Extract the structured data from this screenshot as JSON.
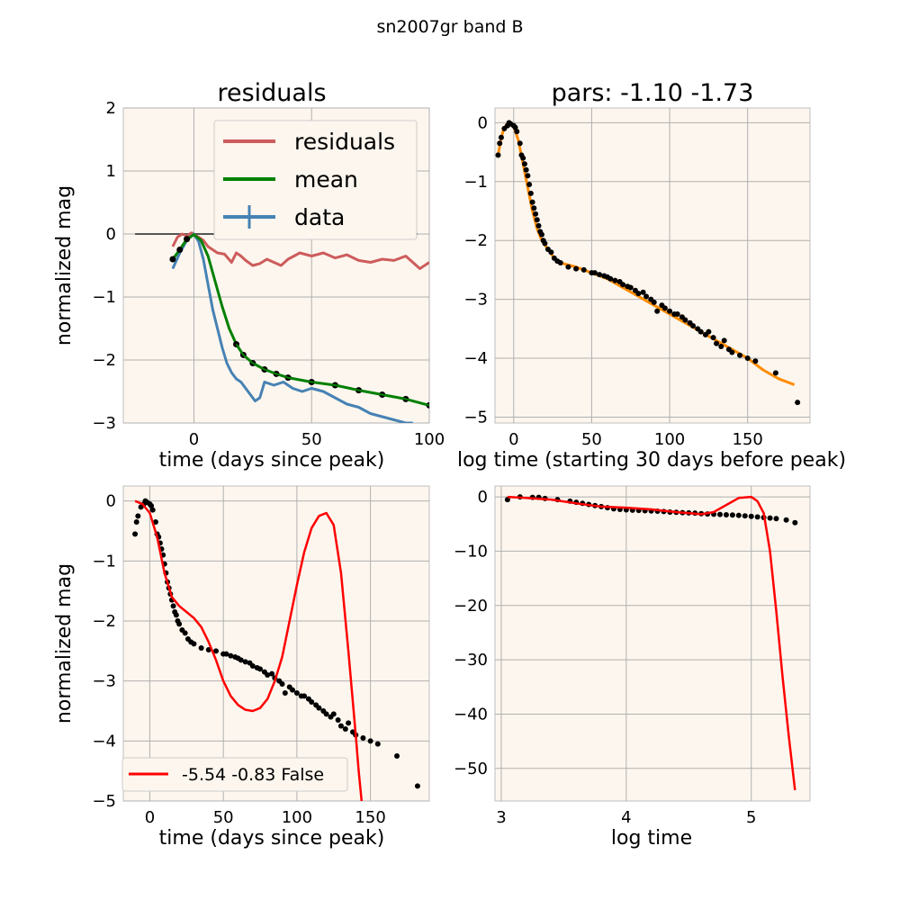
{
  "suptitle": "sn2007gr band B",
  "chart_data": [
    {
      "type": "line",
      "title": "residuals",
      "xlabel": "time (days since peak)",
      "ylabel": "normalized mag",
      "xlim": [
        -30,
        100
      ],
      "ylim": [
        -3,
        2
      ],
      "xticks": [
        0,
        50,
        100
      ],
      "yticks": [
        2,
        1,
        0,
        -1,
        -2,
        -3
      ],
      "grid": true,
      "legend_position": "top-right",
      "series": [
        {
          "name": "residuals",
          "color": "#cd5c5c",
          "x": [
            -9,
            -7,
            -5,
            -3,
            -1,
            0,
            2,
            4,
            6,
            8,
            10,
            13,
            16,
            18,
            20,
            22,
            25,
            28,
            31,
            34,
            37,
            40,
            45,
            50,
            55,
            60,
            65,
            70,
            75,
            80,
            85,
            90,
            93,
            96,
            100
          ],
          "y": [
            -0.2,
            -0.05,
            0,
            -0.03,
            0.02,
            -0.01,
            -0.05,
            -0.1,
            -0.2,
            -0.25,
            -0.3,
            -0.32,
            -0.45,
            -0.3,
            -0.35,
            -0.42,
            -0.5,
            -0.47,
            -0.4,
            -0.45,
            -0.5,
            -0.4,
            -0.3,
            -0.35,
            -0.3,
            -0.38,
            -0.33,
            -0.42,
            -0.45,
            -0.4,
            -0.42,
            -0.35,
            -0.45,
            -0.55,
            -0.45
          ]
        },
        {
          "name": "mean",
          "color": "#008000",
          "x": [
            -9,
            -6,
            -3,
            0,
            3,
            6,
            9,
            12,
            15,
            18,
            21,
            25,
            30,
            35,
            40,
            50,
            60,
            70,
            80,
            90,
            100
          ],
          "y": [
            -0.4,
            -0.25,
            -0.08,
            -0.01,
            -0.1,
            -0.35,
            -0.75,
            -1.15,
            -1.5,
            -1.75,
            -1.92,
            -2.05,
            -2.15,
            -2.22,
            -2.28,
            -2.35,
            -2.4,
            -2.48,
            -2.55,
            -2.62,
            -2.72
          ]
        },
        {
          "name": "data",
          "color": "#4682b4",
          "x": [
            -9,
            -6,
            -3,
            0,
            2,
            4,
            6,
            8,
            10,
            12,
            14,
            16,
            18,
            20,
            22,
            24,
            26,
            28,
            30,
            34,
            38,
            42,
            46,
            50,
            55,
            60,
            65,
            70,
            75,
            80,
            85,
            90,
            93
          ],
          "y": [
            -0.55,
            -0.3,
            -0.1,
            0,
            -0.12,
            -0.4,
            -0.8,
            -1.2,
            -1.5,
            -1.8,
            -2.05,
            -2.2,
            -2.3,
            -2.35,
            -2.45,
            -2.55,
            -2.65,
            -2.6,
            -2.35,
            -2.4,
            -2.35,
            -2.45,
            -2.5,
            -2.45,
            -2.5,
            -2.6,
            -2.7,
            -2.75,
            -2.85,
            -2.9,
            -2.95,
            -3.0,
            -3.0
          ]
        }
      ],
      "baseline": {
        "x": [
          -25,
          95
        ],
        "y": 0,
        "color": "#555555"
      }
    },
    {
      "type": "scatter",
      "title": "pars: -1.10 -1.73",
      "xlabel": "log time (starting 30 days before peak)",
      "ylabel": "",
      "xlim": [
        -12,
        190
      ],
      "ylim": [
        -5.1,
        0.25
      ],
      "xticks": [
        0,
        50,
        100,
        150
      ],
      "yticks": [
        0,
        -1,
        -2,
        -3,
        -4,
        -5
      ],
      "grid": true,
      "fit": {
        "color": "#ff8c00",
        "x": [
          -10,
          -8,
          -6,
          -4,
          -2,
          0,
          3,
          6,
          9,
          12,
          15,
          18,
          22,
          26,
          30,
          40,
          50,
          60,
          70,
          80,
          90,
          100,
          110,
          120,
          130,
          140,
          150,
          160,
          170,
          180
        ],
        "y": [
          -0.55,
          -0.25,
          -0.08,
          -0.02,
          -0.02,
          -0.06,
          -0.3,
          -0.7,
          -1.1,
          -1.5,
          -1.8,
          -2.0,
          -2.15,
          -2.3,
          -2.38,
          -2.45,
          -2.55,
          -2.65,
          -2.8,
          -2.95,
          -3.1,
          -3.25,
          -3.4,
          -3.55,
          -3.7,
          -3.85,
          -4.0,
          -4.2,
          -4.35,
          -4.45
        ]
      },
      "points": {
        "color": "#000000",
        "x": [
          -10,
          -9,
          -8,
          -6,
          -4,
          -3,
          -2,
          0,
          1,
          2,
          4,
          5,
          6,
          7,
          8,
          9,
          10,
          11,
          12,
          13,
          14,
          15,
          16,
          17,
          18,
          19,
          20,
          22,
          24,
          26,
          28,
          30,
          35,
          40,
          45,
          50,
          52,
          55,
          58,
          60,
          62,
          65,
          68,
          70,
          73,
          75,
          78,
          80,
          83,
          85,
          88,
          90,
          92,
          95,
          97,
          100,
          103,
          105,
          108,
          110,
          113,
          115,
          118,
          120,
          123,
          125,
          128,
          130,
          133,
          135,
          138,
          140,
          145,
          150,
          155,
          168,
          182
        ],
        "y": [
          -0.55,
          -0.35,
          -0.25,
          -0.1,
          -0.05,
          0,
          -0.02,
          -0.05,
          -0.08,
          -0.15,
          -0.35,
          -0.55,
          -0.6,
          -0.7,
          -0.8,
          -0.9,
          -1.05,
          -1.2,
          -1.35,
          -1.45,
          -1.55,
          -1.65,
          -1.75,
          -1.85,
          -1.9,
          -2.0,
          -2.05,
          -2.15,
          -2.2,
          -2.3,
          -2.35,
          -2.38,
          -2.45,
          -2.48,
          -2.5,
          -2.55,
          -2.55,
          -2.58,
          -2.6,
          -2.62,
          -2.65,
          -2.68,
          -2.7,
          -2.75,
          -2.78,
          -2.8,
          -2.85,
          -2.9,
          -2.88,
          -2.95,
          -3.0,
          -3.05,
          -3.2,
          -3.1,
          -3.15,
          -3.2,
          -3.25,
          -3.25,
          -3.3,
          -3.35,
          -3.4,
          -3.45,
          -3.5,
          -3.55,
          -3.6,
          -3.55,
          -3.65,
          -3.75,
          -3.8,
          -3.7,
          -3.85,
          -3.9,
          -3.95,
          -4.0,
          -4.05,
          -4.25,
          -4.75
        ]
      }
    },
    {
      "type": "line",
      "title": "",
      "xlabel": "time (days since peak)",
      "ylabel": "normalized mag",
      "xlim": [
        -18,
        190
      ],
      "ylim": [
        -5.0,
        0.25
      ],
      "xticks": [
        0,
        50,
        100,
        150
      ],
      "yticks": [
        0,
        -1,
        -2,
        -3,
        -4,
        -5
      ],
      "grid": true,
      "legend_position": "lower-left",
      "fit": {
        "name": "-5.54 -0.83 False",
        "color": "#ff0000",
        "x": [
          -10,
          -5,
          0,
          5,
          10,
          15,
          20,
          25,
          30,
          35,
          40,
          45,
          50,
          55,
          60,
          65,
          70,
          75,
          80,
          85,
          90,
          95,
          100,
          105,
          110,
          115,
          120,
          125,
          130,
          135,
          140,
          142,
          144
        ],
        "y": [
          0,
          -0.05,
          -0.2,
          -0.6,
          -1.2,
          -1.6,
          -1.75,
          -1.85,
          -1.95,
          -2.1,
          -2.35,
          -2.65,
          -3.0,
          -3.25,
          -3.4,
          -3.48,
          -3.5,
          -3.45,
          -3.3,
          -3.0,
          -2.6,
          -2.0,
          -1.4,
          -0.85,
          -0.45,
          -0.25,
          -0.2,
          -0.4,
          -1.2,
          -2.5,
          -3.9,
          -4.5,
          -5.0
        ]
      },
      "points_ref": 1
    },
    {
      "type": "line",
      "title": "",
      "xlabel": "log time",
      "ylabel": "",
      "xlim": [
        2.95,
        5.47
      ],
      "ylim": [
        -56,
        2
      ],
      "xticks": [
        3,
        4,
        5
      ],
      "yticks": [
        0,
        -10,
        -20,
        -30,
        -40,
        -50
      ],
      "grid": true,
      "fit": {
        "color": "#ff0000",
        "x": [
          3.05,
          3.2,
          3.4,
          3.6,
          3.8,
          4.0,
          4.2,
          4.4,
          4.6,
          4.7,
          4.8,
          4.9,
          5.0,
          5.05,
          5.1,
          5.15,
          5.2,
          5.25,
          5.3,
          5.35
        ],
        "y": [
          0,
          -0.2,
          -0.5,
          -1.2,
          -1.8,
          -2.0,
          -2.3,
          -2.8,
          -3.2,
          -2.8,
          -1.5,
          -0.2,
          0,
          -0.8,
          -3,
          -10,
          -21,
          -33,
          -44,
          -54
        ]
      },
      "points": {
        "color": "#000000",
        "x": [
          3.05,
          3.15,
          3.25,
          3.3,
          3.35,
          3.45,
          3.55,
          3.6,
          3.65,
          3.7,
          3.75,
          3.8,
          3.85,
          3.9,
          3.95,
          4.0,
          4.05,
          4.1,
          4.15,
          4.2,
          4.25,
          4.3,
          4.35,
          4.4,
          4.45,
          4.5,
          4.55,
          4.6,
          4.65,
          4.7,
          4.75,
          4.8,
          4.85,
          4.9,
          4.95,
          5.0,
          5.05,
          5.1,
          5.15,
          5.2,
          5.28,
          5.35
        ],
        "y": [
          -0.5,
          0,
          -0.1,
          -0.1,
          -0.3,
          -0.5,
          -0.8,
          -1.0,
          -1.2,
          -1.4,
          -1.6,
          -1.8,
          -2.0,
          -2.2,
          -2.3,
          -2.4,
          -2.45,
          -2.5,
          -2.55,
          -2.6,
          -2.65,
          -2.7,
          -2.8,
          -2.85,
          -2.9,
          -2.95,
          -3.0,
          -3.1,
          -3.15,
          -3.2,
          -3.25,
          -3.3,
          -3.35,
          -3.4,
          -3.5,
          -3.6,
          -3.7,
          -3.8,
          -3.9,
          -4.0,
          -4.25,
          -4.75
        ]
      }
    }
  ]
}
